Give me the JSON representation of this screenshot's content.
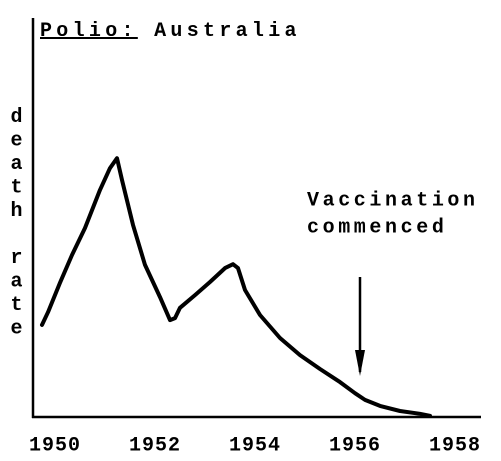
{
  "chart_data": {
    "type": "line",
    "title": "Polio:",
    "subtitle": "Australia",
    "ylabel": "death rate",
    "x": [
      1949.74,
      1949.86,
      1950.1,
      1950.34,
      1950.6,
      1950.9,
      1951.1,
      1951.24,
      1951.34,
      1951.56,
      1951.8,
      1952.1,
      1952.3,
      1952.4,
      1952.5,
      1952.8,
      1953.1,
      1953.4,
      1953.56,
      1953.66,
      1953.8,
      1954.1,
      1954.5,
      1954.9,
      1955.3,
      1955.7,
      1956.0,
      1956.2,
      1956.5,
      1956.9,
      1957.3,
      1957.5
    ],
    "series": [
      {
        "name": "death rate",
        "color": "#000000",
        "values": [
          23.2,
          26.4,
          33.8,
          40.8,
          47.6,
          57.2,
          62.7,
          65.2,
          59.7,
          48.4,
          38.3,
          30.2,
          24.4,
          24.9,
          27.5,
          30.7,
          34.0,
          37.5,
          38.5,
          37.5,
          32.0,
          25.7,
          19.9,
          15.6,
          12.1,
          8.8,
          6.0,
          4.3,
          2.8,
          1.5,
          0.8,
          0.3
        ]
      }
    ],
    "xlim": [
      1949.56,
      1958.5
    ],
    "xticks": [
      1950,
      1952,
      1954,
      1956,
      1958
    ],
    "ylim": [
      0,
      100
    ],
    "annotations": [
      {
        "lines": [
          "Vaccination",
          "commenced"
        ],
        "x": 1956.1
      }
    ]
  }
}
